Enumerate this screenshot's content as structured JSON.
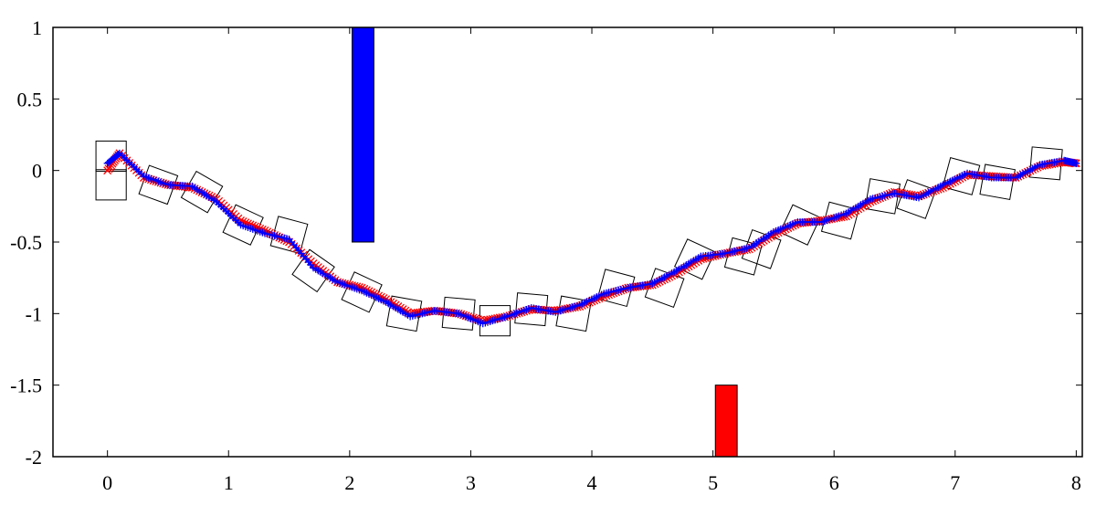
{
  "chart_data": {
    "type": "line",
    "title": "",
    "xlabel": "",
    "ylabel": "",
    "xlim": [
      -0.45,
      8.05
    ],
    "ylim": [
      -2,
      1
    ],
    "grid": false,
    "x_ticks": [
      {
        "value": 0,
        "label": "0"
      },
      {
        "value": 1,
        "label": "1"
      },
      {
        "value": 2,
        "label": "2"
      },
      {
        "value": 3,
        "label": "3"
      },
      {
        "value": 4,
        "label": "4"
      },
      {
        "value": 5,
        "label": "5"
      },
      {
        "value": 6,
        "label": "6"
      },
      {
        "value": 7,
        "label": "7"
      },
      {
        "value": 8,
        "label": "8"
      }
    ],
    "y_ticks": [
      {
        "value": 1,
        "label": "1"
      },
      {
        "value": 0.5,
        "label": "0.5"
      },
      {
        "value": 0,
        "label": "0"
      },
      {
        "value": -0.5,
        "label": "-0.5"
      },
      {
        "value": -1,
        "label": "-1"
      },
      {
        "value": -1.5,
        "label": "-1.5"
      },
      {
        "value": -2,
        "label": "-2"
      }
    ],
    "obstacles": [
      {
        "x0": 2.02,
        "x1": 2.2,
        "y0": -0.5,
        "y1": 1.0,
        "color": "#0000ff"
      },
      {
        "x0": 5.02,
        "x1": 5.2,
        "y0": -2.0,
        "y1": -1.5,
        "color": "#ff0000"
      }
    ],
    "series": [
      {
        "role": "reference path",
        "color": "#ff0000",
        "marker": "x",
        "x": [
          0.0,
          0.1,
          0.3,
          0.5,
          0.7,
          0.9,
          1.1,
          1.3,
          1.5,
          1.7,
          1.9,
          2.1,
          2.3,
          2.5,
          2.7,
          2.9,
          3.1,
          3.3,
          3.5,
          3.7,
          3.9,
          4.1,
          4.3,
          4.5,
          4.7,
          4.9,
          5.1,
          5.3,
          5.5,
          5.7,
          5.9,
          6.1,
          6.3,
          6.5,
          6.7,
          6.9,
          7.1,
          7.3,
          7.5,
          7.7,
          7.9,
          8.0
        ],
        "y": [
          0.0,
          0.12,
          -0.05,
          -0.1,
          -0.12,
          -0.2,
          -0.35,
          -0.42,
          -0.5,
          -0.65,
          -0.78,
          -0.82,
          -0.9,
          -1.0,
          -0.98,
          -1.0,
          -1.05,
          -1.02,
          -0.97,
          -0.98,
          -0.95,
          -0.88,
          -0.82,
          -0.8,
          -0.72,
          -0.62,
          -0.58,
          -0.55,
          -0.45,
          -0.37,
          -0.35,
          -0.32,
          -0.22,
          -0.15,
          -0.18,
          -0.12,
          -0.03,
          -0.04,
          -0.05,
          0.03,
          0.06,
          0.05
        ]
      },
      {
        "role": "tracked trajectory",
        "color": "#0000ff",
        "marker": "+",
        "x": [
          0.0,
          0.1,
          0.3,
          0.5,
          0.7,
          0.9,
          1.1,
          1.3,
          1.5,
          1.7,
          1.9,
          2.1,
          2.3,
          2.5,
          2.7,
          2.9,
          3.1,
          3.3,
          3.5,
          3.7,
          3.9,
          4.1,
          4.3,
          4.5,
          4.7,
          4.9,
          5.1,
          5.3,
          5.5,
          5.7,
          5.9,
          6.1,
          6.3,
          6.5,
          6.7,
          6.9,
          7.1,
          7.3,
          7.5,
          7.7,
          7.9,
          8.0
        ],
        "y": [
          0.05,
          0.12,
          -0.04,
          -0.1,
          -0.11,
          -0.22,
          -0.38,
          -0.44,
          -0.48,
          -0.68,
          -0.78,
          -0.84,
          -0.92,
          -1.02,
          -0.98,
          -1.0,
          -1.07,
          -1.02,
          -0.96,
          -0.99,
          -0.94,
          -0.86,
          -0.82,
          -0.79,
          -0.7,
          -0.6,
          -0.58,
          -0.54,
          -0.43,
          -0.36,
          -0.36,
          -0.3,
          -0.2,
          -0.16,
          -0.19,
          -0.1,
          -0.02,
          -0.05,
          -0.05,
          0.04,
          0.07,
          0.05
        ]
      }
    ],
    "box_markers": {
      "color": "#000000",
      "size": 0.25,
      "x": [
        0.03,
        0.03,
        0.42,
        0.78,
        1.12,
        1.5,
        1.7,
        2.1,
        2.45,
        2.9,
        3.2,
        3.5,
        3.85,
        4.2,
        4.6,
        4.85,
        5.25,
        5.4,
        5.72,
        6.05,
        6.4,
        6.68,
        7.05,
        7.35,
        7.75
      ],
      "y": [
        0.1,
        -0.1,
        -0.1,
        -0.15,
        -0.38,
        -0.45,
        -0.7,
        -0.85,
        -1.0,
        -1.0,
        -1.05,
        -0.97,
        -1.0,
        -0.82,
        -0.82,
        -0.62,
        -0.6,
        -0.55,
        -0.38,
        -0.35,
        -0.18,
        -0.2,
        -0.04,
        -0.08,
        0.05
      ],
      "angle_deg": [
        0,
        0,
        20,
        30,
        25,
        15,
        35,
        25,
        10,
        5,
        0,
        5,
        10,
        15,
        20,
        25,
        15,
        20,
        25,
        15,
        10,
        20,
        15,
        10,
        5
      ]
    }
  }
}
